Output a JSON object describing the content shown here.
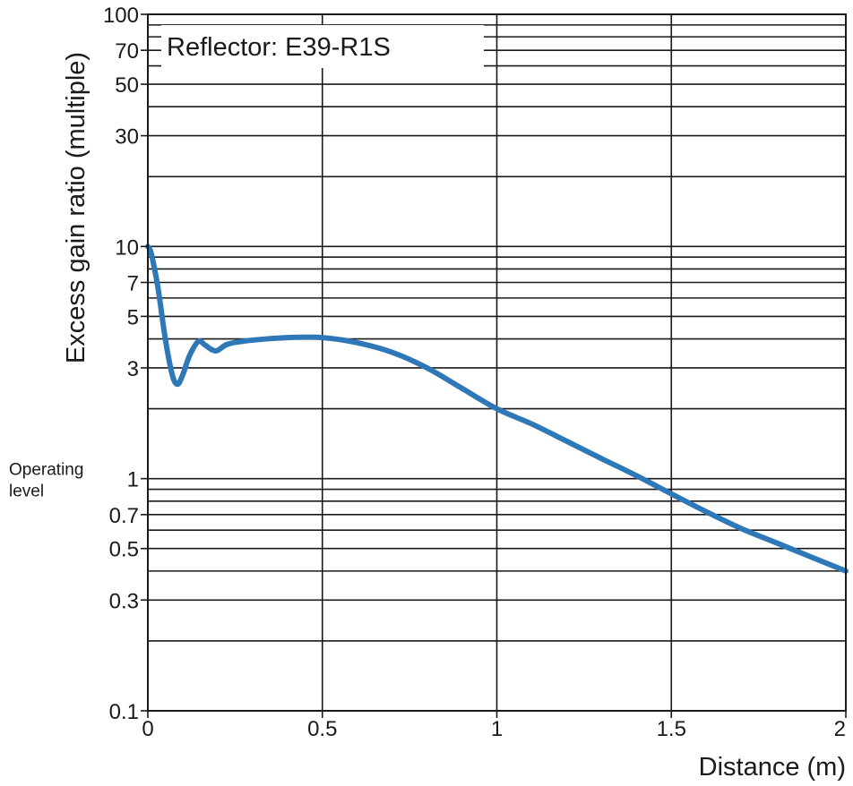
{
  "chart_data": {
    "type": "line",
    "title": "Reflector: E39-R1S",
    "xlabel": "Distance (m)",
    "ylabel": "Excess gain ratio (multiple)",
    "xlim": [
      0,
      2
    ],
    "ylim": [
      0.1,
      100
    ],
    "yscale": "log",
    "grid": true,
    "x_ticks": [
      {
        "value": 0,
        "label": "0"
      },
      {
        "value": 0.5,
        "label": "0.5"
      },
      {
        "value": 1,
        "label": "1"
      },
      {
        "value": 1.5,
        "label": "1.5"
      },
      {
        "value": 2,
        "label": "2"
      }
    ],
    "y_ticks": [
      {
        "value": 0.1,
        "label": "0.1"
      },
      {
        "value": 0.3,
        "label": "0.3"
      },
      {
        "value": 0.5,
        "label": "0.5"
      },
      {
        "value": 0.7,
        "label": "0.7"
      },
      {
        "value": 1,
        "label": "1"
      },
      {
        "value": 3,
        "label": "3"
      },
      {
        "value": 5,
        "label": "5"
      },
      {
        "value": 7,
        "label": "7"
      },
      {
        "value": 10,
        "label": "10"
      },
      {
        "value": 30,
        "label": "30"
      },
      {
        "value": 50,
        "label": "50"
      },
      {
        "value": 70,
        "label": "70"
      },
      {
        "value": 100,
        "label": "100"
      }
    ],
    "y_gridlines": [
      0.2,
      0.3,
      0.4,
      0.5,
      0.6,
      0.7,
      0.8,
      0.9,
      1,
      2,
      3,
      4,
      5,
      6,
      7,
      8,
      9,
      10,
      20,
      30,
      40,
      50,
      60,
      70,
      80,
      90,
      100
    ],
    "x_gridlines": [
      0,
      0.5,
      1,
      1.5,
      2
    ],
    "annotations": [
      {
        "text_lines": [
          "Operating",
          "level"
        ],
        "at_y": 1
      }
    ],
    "series": [
      {
        "color": "#2f78b7",
        "x": [
          0,
          0.01,
          0.03,
          0.05,
          0.07,
          0.085,
          0.1,
          0.12,
          0.145,
          0.165,
          0.195,
          0.23,
          0.3,
          0.4,
          0.5,
          0.6,
          0.7,
          0.8,
          0.9,
          1.0,
          1.1,
          1.2,
          1.3,
          1.4,
          1.5,
          1.6,
          1.7,
          1.8,
          1.9,
          2.0
        ],
        "y": [
          10,
          9.3,
          6.5,
          4.0,
          2.8,
          2.55,
          2.8,
          3.4,
          3.9,
          3.75,
          3.55,
          3.8,
          3.95,
          4.05,
          4.05,
          3.85,
          3.5,
          3.0,
          2.45,
          2.0,
          1.72,
          1.45,
          1.22,
          1.03,
          0.86,
          0.72,
          0.61,
          0.53,
          0.46,
          0.4
        ]
      }
    ]
  },
  "colors": {
    "line": "#2f78b7",
    "grid": "#1a1a1a",
    "background": "#ffffff"
  }
}
